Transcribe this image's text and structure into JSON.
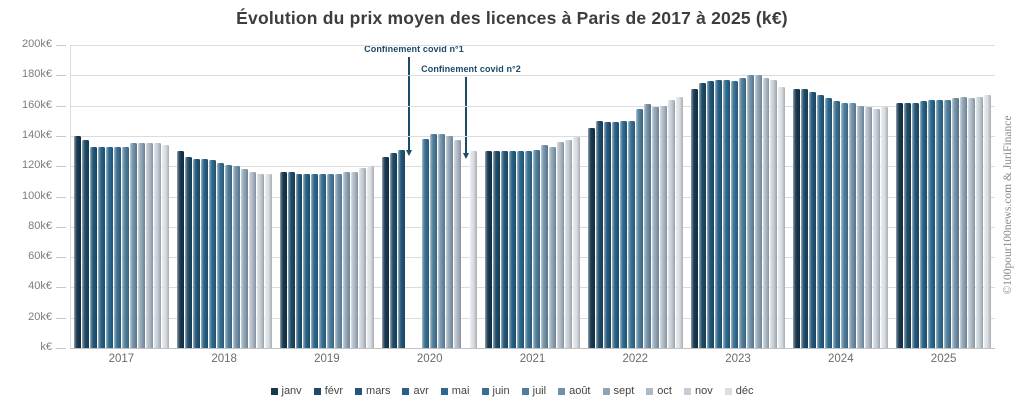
{
  "title": "Évolution du prix moyen des licences à Paris de 2017 à 2025 (k€)",
  "watermark": "©100pour100news.com & JuriFinance",
  "annotations": [
    {
      "label": "Confinement covid n°1"
    },
    {
      "label": "Confinement covid n°2"
    }
  ],
  "chart_data": {
    "type": "bar",
    "title": "Évolution du prix moyen des licences à Paris de 2017 à 2025 (k€)",
    "xlabel": "",
    "ylabel": "k€",
    "grid": true,
    "legend_position": "bottom",
    "y_axis": {
      "min": 0,
      "max": 200,
      "step": 20,
      "tick_labels": [
        "k€",
        "20k€",
        "40k€",
        "60k€",
        "80k€",
        "100k€",
        "120k€",
        "140k€",
        "160k€",
        "180k€",
        "200k€"
      ]
    },
    "categories": [
      "2017",
      "2018",
      "2019",
      "2020",
      "2021",
      "2022",
      "2023",
      "2024",
      "2025"
    ],
    "note": "values in k€; null = no bar (covid confinement months in 2020)",
    "series": [
      {
        "name": "janv",
        "color": "#17384f",
        "values": [
          140,
          130,
          116,
          126,
          130,
          145,
          171,
          171,
          162
        ]
      },
      {
        "name": "févr",
        "color": "#1d4b67",
        "values": [
          137,
          126,
          116,
          129,
          130,
          150,
          175,
          171,
          162
        ]
      },
      {
        "name": "mars",
        "color": "#225678",
        "values": [
          133,
          125,
          115,
          131,
          130,
          149,
          176,
          169,
          162
        ]
      },
      {
        "name": "avr",
        "color": "#276185",
        "values": [
          133,
          125,
          115,
          null,
          130,
          149,
          177,
          167,
          163
        ]
      },
      {
        "name": "mai",
        "color": "#2b688d",
        "values": [
          133,
          124,
          115,
          null,
          130,
          150,
          177,
          165,
          164
        ]
      },
      {
        "name": "juin",
        "color": "#376f91",
        "values": [
          133,
          122,
          115,
          138,
          130,
          150,
          176,
          163,
          164
        ]
      },
      {
        "name": "juil",
        "color": "#4e7e9b",
        "values": [
          133,
          121,
          115,
          141,
          131,
          158,
          178,
          162,
          164
        ]
      },
      {
        "name": "août",
        "color": "#7191a9",
        "values": [
          135,
          120,
          115,
          141,
          134,
          161,
          180,
          162,
          165
        ]
      },
      {
        "name": "sept",
        "color": "#8fa5b6",
        "values": [
          135,
          118,
          116,
          140,
          133,
          159,
          180,
          160,
          166
        ]
      },
      {
        "name": "oct",
        "color": "#adbac6",
        "values": [
          135,
          116,
          116,
          137,
          136,
          160,
          178,
          159,
          165
        ]
      },
      {
        "name": "nov",
        "color": "#c5ced6",
        "values": [
          135,
          115,
          119,
          null,
          137,
          164,
          177,
          158,
          166
        ]
      },
      {
        "name": "déc",
        "color": "#d9dee3",
        "values": [
          134,
          115,
          120,
          130,
          139,
          166,
          172,
          159,
          167
        ]
      }
    ]
  }
}
